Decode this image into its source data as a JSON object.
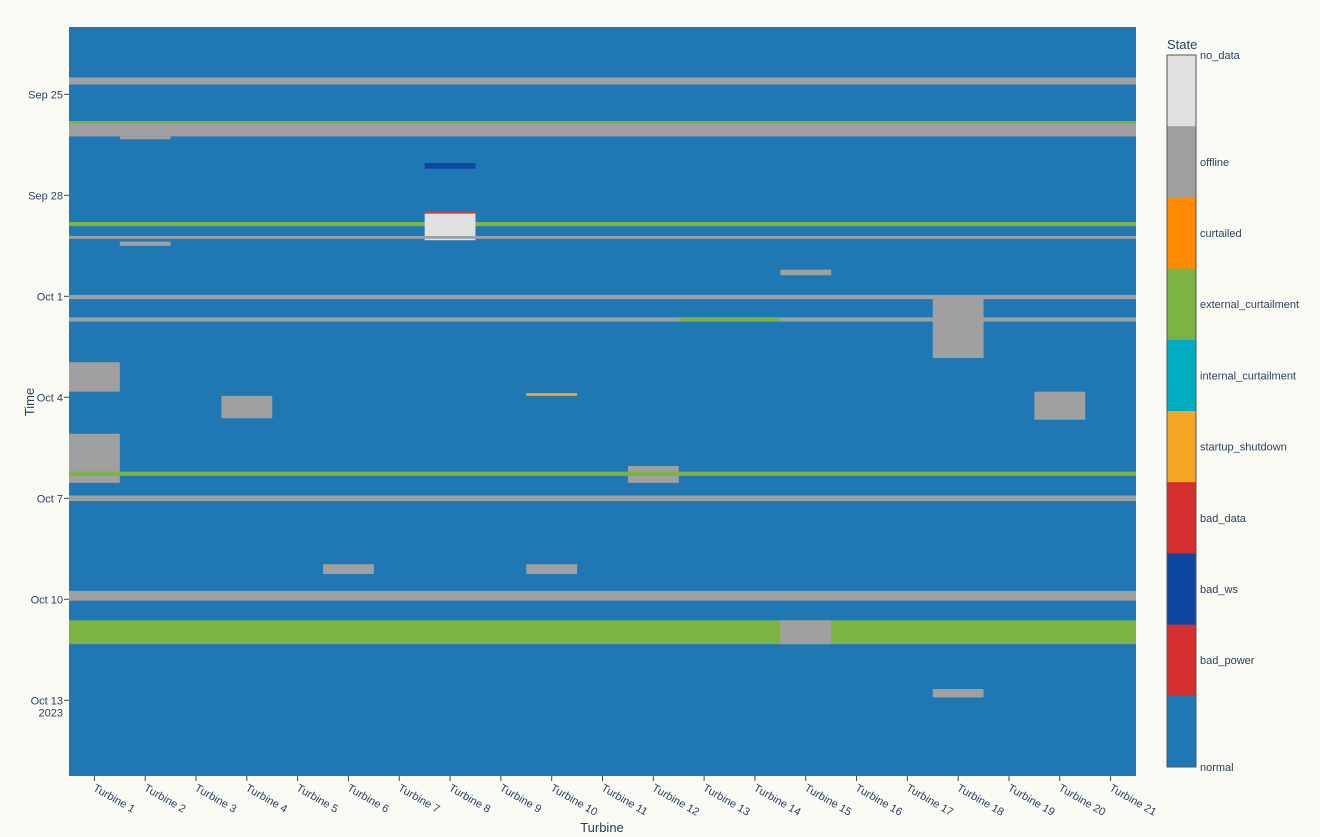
{
  "chart_data": {
    "type": "heatmap",
    "xlabel": "Turbine",
    "ylabel": "Time",
    "x_categories": [
      "Turbine 1",
      "Turbine 2",
      "Turbine 3",
      "Turbine 4",
      "Turbine 5",
      "Turbine 6",
      "Turbine 7",
      "Turbine 8",
      "Turbine 9",
      "Turbine 10",
      "Turbine 11",
      "Turbine 12",
      "Turbine 13",
      "Turbine 14",
      "Turbine 15",
      "Turbine 16",
      "Turbine 17",
      "Turbine 18",
      "Turbine 19",
      "Turbine 20",
      "Turbine 21"
    ],
    "y_range": [
      "2023-09-23 00:00",
      "2023-10-15 06:00"
    ],
    "y_reversed": true,
    "y_ticks": [
      {
        "date": "2023-09-25",
        "label": "Sep 25"
      },
      {
        "date": "2023-09-28",
        "label": "Sep 28"
      },
      {
        "date": "2023-10-01",
        "label": "Oct 1"
      },
      {
        "date": "2023-10-04",
        "label": "Oct 4"
      },
      {
        "date": "2023-10-07",
        "label": "Oct 7"
      },
      {
        "date": "2023-10-10",
        "label": "Oct 10"
      },
      {
        "date": "2023-10-13",
        "label": "Oct 13",
        "sublabel": "2023"
      }
    ],
    "legend": {
      "title": "State",
      "position": "right",
      "states": [
        {
          "name": "no_data",
          "color": "#e0e0e0"
        },
        {
          "name": "offline",
          "color": "#a0a0a0"
        },
        {
          "name": "curtailed",
          "color": "#ff8c00"
        },
        {
          "name": "external_curtailment",
          "color": "#7cb342"
        },
        {
          "name": "internal_curtailment",
          "color": "#00acc1"
        },
        {
          "name": "startup_shutdown",
          "color": "#f5a623"
        },
        {
          "name": "bad_data",
          "color": "#d32f2f"
        },
        {
          "name": "bad_ws",
          "color": "#0d47a1"
        },
        {
          "name": "bad_power",
          "color": "#d32f2f"
        },
        {
          "name": "normal",
          "color": "#1f77b4"
        }
      ]
    },
    "default_state": "normal",
    "periods": [
      {
        "state": "offline",
        "start": "2023-09-24 12:00",
        "end": "2023-09-24 17:00",
        "turbines": "all"
      },
      {
        "state": "offline",
        "start": "2023-09-25 20:00",
        "end": "2023-09-26 06:00",
        "turbines": "all"
      },
      {
        "state": "external_curtailment",
        "start": "2023-09-25 19:00",
        "end": "2023-09-25 21:00",
        "turbines": "all"
      },
      {
        "state": "offline",
        "start": "2023-09-26 06:00",
        "end": "2023-09-26 08:00",
        "turbines": [
          2
        ]
      },
      {
        "state": "bad_ws",
        "start": "2023-09-27 01:00",
        "end": "2023-09-27 05:00",
        "turbines": [
          8
        ]
      },
      {
        "state": "external_curtailment",
        "start": "2023-09-28 19:00",
        "end": "2023-09-28 22:00",
        "turbines": "all"
      },
      {
        "state": "no_data",
        "start": "2023-09-28 12:00",
        "end": "2023-09-29 08:00",
        "turbines": [
          8
        ]
      },
      {
        "state": "bad_power",
        "start": "2023-09-28 12:00",
        "end": "2023-09-28 13:00",
        "turbines": [
          8
        ]
      },
      {
        "state": "offline",
        "start": "2023-09-29 05:00",
        "end": "2023-09-29 07:00",
        "turbines": "all"
      },
      {
        "state": "offline",
        "start": "2023-09-29 09:00",
        "end": "2023-09-29 12:00",
        "turbines": [
          2
        ]
      },
      {
        "state": "offline",
        "start": "2023-09-30 05:00",
        "end": "2023-09-30 09:00",
        "turbines": [
          15
        ]
      },
      {
        "state": "offline",
        "start": "2023-09-30 23:00",
        "end": "2023-10-01 02:00",
        "turbines": "all"
      },
      {
        "state": "offline",
        "start": "2023-10-01 15:00",
        "end": "2023-10-01 18:00",
        "turbines": "all"
      },
      {
        "state": "external_curtailment",
        "start": "2023-10-01 15:00",
        "end": "2023-10-01 18:00",
        "turbines": [
          13,
          14
        ]
      },
      {
        "state": "offline",
        "start": "2023-10-01 00:00",
        "end": "2023-10-02 20:00",
        "turbines": [
          18
        ]
      },
      {
        "state": "offline",
        "start": "2023-10-02 23:00",
        "end": "2023-10-03 20:00",
        "turbines": [
          1
        ]
      },
      {
        "state": "offline",
        "start": "2023-10-03 23:00",
        "end": "2023-10-04 15:00",
        "turbines": [
          4
        ]
      },
      {
        "state": "offline",
        "start": "2023-10-03 20:00",
        "end": "2023-10-04 16:00",
        "turbines": [
          20
        ]
      },
      {
        "state": "startup_shutdown",
        "start": "2023-10-03 21:00",
        "end": "2023-10-03 23:00",
        "turbines": [
          10
        ]
      },
      {
        "state": "offline",
        "start": "2023-10-05 02:00",
        "end": "2023-10-06 13:00",
        "turbines": [
          1
        ]
      },
      {
        "state": "offline",
        "start": "2023-10-06 01:00",
        "end": "2023-10-06 13:00",
        "turbines": [
          12
        ]
      },
      {
        "state": "external_curtailment",
        "start": "2023-10-06 05:00",
        "end": "2023-10-06 08:00",
        "turbines": "all"
      },
      {
        "state": "offline",
        "start": "2023-10-06 22:00",
        "end": "2023-10-07 02:00",
        "turbines": "all"
      },
      {
        "state": "offline",
        "start": "2023-10-08 23:00",
        "end": "2023-10-09 06:00",
        "turbines": [
          6,
          10
        ]
      },
      {
        "state": "offline",
        "start": "2023-10-09 18:00",
        "end": "2023-10-10 01:00",
        "turbines": "all"
      },
      {
        "state": "external_curtailment",
        "start": "2023-10-10 15:00",
        "end": "2023-10-11 08:00",
        "turbines": "all"
      },
      {
        "state": "offline",
        "start": "2023-10-10 15:00",
        "end": "2023-10-11 08:00",
        "turbines": [
          15
        ]
      },
      {
        "state": "offline",
        "start": "2023-10-12 16:00",
        "end": "2023-10-12 22:00",
        "turbines": [
          18
        ]
      }
    ]
  }
}
